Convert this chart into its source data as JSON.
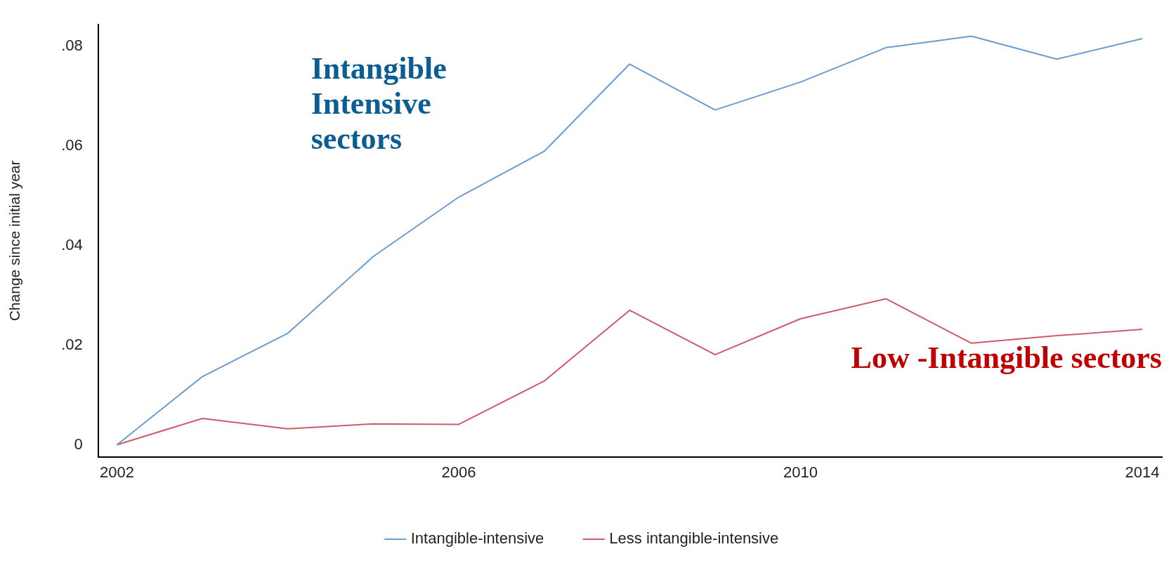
{
  "chart_data": {
    "type": "line",
    "ylabel": "Change since initial year",
    "x": [
      2002,
      2003,
      2004,
      2005,
      2006,
      2007,
      2008,
      2009,
      2010,
      2011,
      2012,
      2013,
      2014
    ],
    "series": [
      {
        "name": "Intangible-intensive",
        "color": "#6a9bd1",
        "values": [
          0,
          0.0137,
          0.0224,
          0.0378,
          0.0497,
          0.0589,
          0.0764,
          0.0672,
          0.0728,
          0.0797,
          0.082,
          0.0774,
          0.0815
        ]
      },
      {
        "name": "Less intangible-intensive",
        "color": "#d05a6a",
        "values": [
          0,
          0.0053,
          0.0032,
          0.0042,
          0.0041,
          0.0128,
          0.027,
          0.0181,
          0.0253,
          0.0293,
          0.0204,
          0.0219,
          0.0232
        ]
      }
    ],
    "xlim": [
      2001.78,
      2014.23
    ],
    "xticks": [
      2002,
      2006,
      2010,
      2014
    ],
    "ylim": [
      -0.0024,
      0.0843
    ],
    "yticks": [
      0,
      {
        "value": 0.02,
        "label": ".02"
      },
      {
        "value": 0.04,
        "label": ".04"
      },
      {
        "value": 0.06,
        "label": ".06"
      },
      {
        "value": 0.08,
        "label": ".08"
      }
    ],
    "annotations": [
      "Intangible Intensive sectors",
      "Low -Intangible sectors"
    ],
    "grid": false,
    "legend": "bottom",
    "marker": "none",
    "line_style": "solid"
  }
}
